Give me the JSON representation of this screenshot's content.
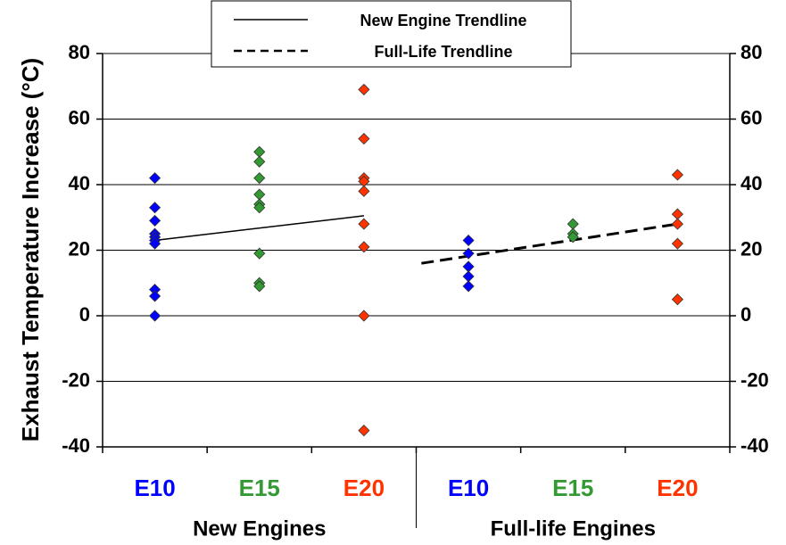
{
  "chart_data": {
    "type": "scatter",
    "y_label": "Exhaust Temperature Increase (°C)",
    "categories": [
      "E10",
      "E15",
      "E20",
      "E10",
      "E15",
      "E20"
    ],
    "category_colors": [
      "#0000ff",
      "#339933",
      "#ff3300",
      "#0000ff",
      "#339933",
      "#ff3300"
    ],
    "group_labels": [
      "New Engines",
      "Full-life Engines"
    ],
    "xlim": [
      0.5,
      6.5
    ],
    "point_series": [
      {
        "color": "#0000ff",
        "x": 1,
        "values": [
          42,
          33,
          29,
          25,
          24,
          23,
          22,
          8,
          6,
          0
        ]
      },
      {
        "color": "#339933",
        "x": 2,
        "values": [
          50,
          47,
          42,
          37,
          34,
          33,
          19,
          10,
          9
        ]
      },
      {
        "color": "#ff3300",
        "x": 3,
        "values": [
          69,
          54,
          42,
          41,
          38,
          28,
          21,
          0,
          -35
        ]
      },
      {
        "color": "#0000ff",
        "x": 4,
        "values": [
          23,
          19,
          15,
          12,
          9
        ]
      },
      {
        "color": "#339933",
        "x": 5,
        "values": [
          28,
          25,
          24
        ]
      },
      {
        "color": "#ff3300",
        "x": 6,
        "values": [
          43,
          31,
          28,
          22,
          5
        ]
      }
    ],
    "trendlines": [
      {
        "name": "New Engine Trendline",
        "dashed": false,
        "x": [
          1,
          3
        ],
        "values": [
          23,
          30.5
        ]
      },
      {
        "name": "Full-Life Trendline",
        "dashed": true,
        "x": [
          3.55,
          6
        ],
        "values": [
          16,
          28
        ]
      }
    ],
    "ylim": [
      -40,
      80
    ],
    "yticks": [
      -40,
      -20,
      0,
      20,
      40,
      60,
      80
    ],
    "y2lim": [
      -40,
      80
    ],
    "y2ticks": [
      -40,
      -20,
      0,
      20,
      40,
      60,
      80
    ],
    "grid": true
  }
}
